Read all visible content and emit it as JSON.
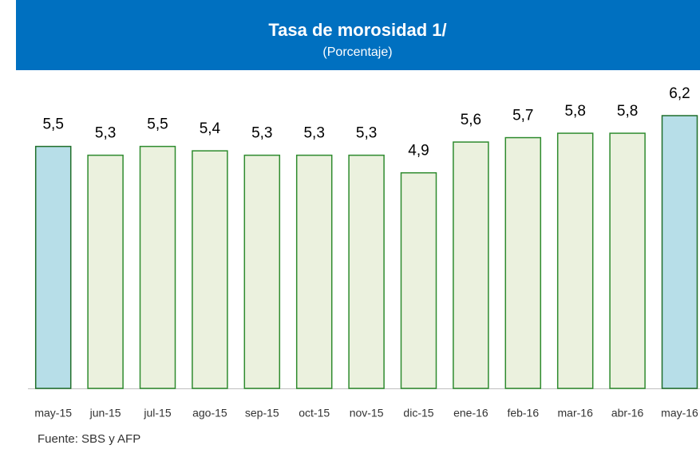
{
  "chart_data": {
    "type": "bar",
    "title": "Tasa de morosidad 1/",
    "subtitle": "(Porcentaje)",
    "categories": [
      "may-15",
      "jun-15",
      "jul-15",
      "ago-15",
      "sep-15",
      "oct-15",
      "nov-15",
      "dic-15",
      "ene-16",
      "feb-16",
      "mar-16",
      "abr-16",
      "may-16"
    ],
    "values": [
      5.5,
      5.3,
      5.5,
      5.4,
      5.3,
      5.3,
      5.3,
      4.9,
      5.6,
      5.7,
      5.8,
      5.8,
      6.2
    ],
    "value_labels": [
      "5,5",
      "5,3",
      "5,5",
      "5,4",
      "5,3",
      "5,3",
      "5,3",
      "4,9",
      "5,6",
      "5,7",
      "5,8",
      "5,8",
      "6,2"
    ],
    "colors": [
      "#b7dee8",
      "#ebf1de",
      "#ebf1de",
      "#ebf1de",
      "#ebf1de",
      "#ebf1de",
      "#ebf1de",
      "#ebf1de",
      "#ebf1de",
      "#ebf1de",
      "#ebf1de",
      "#ebf1de",
      "#b7dee8"
    ],
    "source": "Fuente: SBS y AFP"
  }
}
